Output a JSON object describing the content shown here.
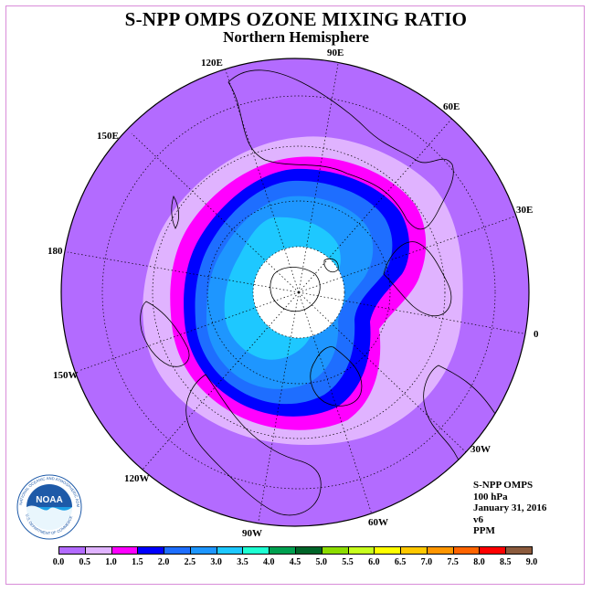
{
  "header": {
    "title": "S-NPP OMPS OZONE MIXING RATIO",
    "subtitle": "Northern Hemisphere"
  },
  "map": {
    "projection": "north-polar-stereographic",
    "longitude_labels": [
      "90E",
      "60E",
      "30E",
      "0",
      "30W",
      "60W",
      "90W",
      "120W",
      "150W",
      "180",
      "150E",
      "120E"
    ],
    "colors": {
      "ocean_background": "#b36bff",
      "polar_night_mask": "#ffffff",
      "coastline": "#000000"
    }
  },
  "info": {
    "instrument": "S-NPP OMPS",
    "level": "100 hPa",
    "date": "January 31, 2016",
    "version": "v6",
    "units": "PPM"
  },
  "colorbar": {
    "ticks": [
      "0.0",
      "0.5",
      "1.0",
      "1.5",
      "2.0",
      "2.5",
      "3.0",
      "3.5",
      "4.0",
      "4.5",
      "5.0",
      "5.5",
      "6.0",
      "6.5",
      "7.0",
      "7.5",
      "8.0",
      "8.5",
      "9.0"
    ],
    "colors": [
      "#b36bff",
      "#e0b3ff",
      "#ff00ff",
      "#0000ff",
      "#1e6eff",
      "#1e96ff",
      "#1ec8ff",
      "#1effd2",
      "#00a050",
      "#006428",
      "#8cdc00",
      "#c8ff1e",
      "#ffff00",
      "#ffc800",
      "#ff9600",
      "#ff6400",
      "#ff0000",
      "#8b5a3c"
    ]
  },
  "logo": {
    "text": "NOAA",
    "ring_text": "NATIONAL OCEANIC AND ATMOSPHERIC ADMINISTRATION",
    "ring_text_bottom": "U.S. DEPARTMENT OF COMMERCE"
  }
}
